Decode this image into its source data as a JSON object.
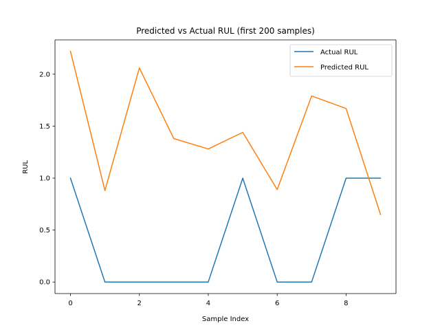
{
  "chart_data": {
    "type": "line",
    "title": "Predicted vs Actual RUL (first 200 samples)",
    "xlabel": "Sample Index",
    "ylabel": "RUL",
    "x": [
      0,
      1,
      2,
      3,
      4,
      5,
      6,
      7,
      8,
      9
    ],
    "series": [
      {
        "name": "Actual RUL",
        "color": "#1f77b4",
        "values": [
          1.0,
          0.0,
          0.0,
          0.0,
          0.0,
          1.0,
          0.0,
          0.0,
          1.0,
          1.0
        ]
      },
      {
        "name": "Predicted RUL",
        "color": "#ff7f0e",
        "values": [
          2.22,
          0.88,
          2.06,
          1.38,
          1.28,
          1.44,
          0.89,
          1.79,
          1.67,
          0.65
        ]
      }
    ],
    "xlim": [
      -0.45,
      9.45
    ],
    "ylim": [
      -0.111,
      2.33
    ],
    "xticks": [
      0,
      2,
      4,
      6,
      8
    ],
    "yticks": [
      0.0,
      0.5,
      1.0,
      1.5,
      2.0
    ],
    "xtick_labels": [
      "0",
      "2",
      "4",
      "6",
      "8"
    ],
    "ytick_labels": [
      "0.0",
      "0.5",
      "1.0",
      "1.5",
      "2.0"
    ],
    "legend_position": "top-right",
    "grid": false
  }
}
